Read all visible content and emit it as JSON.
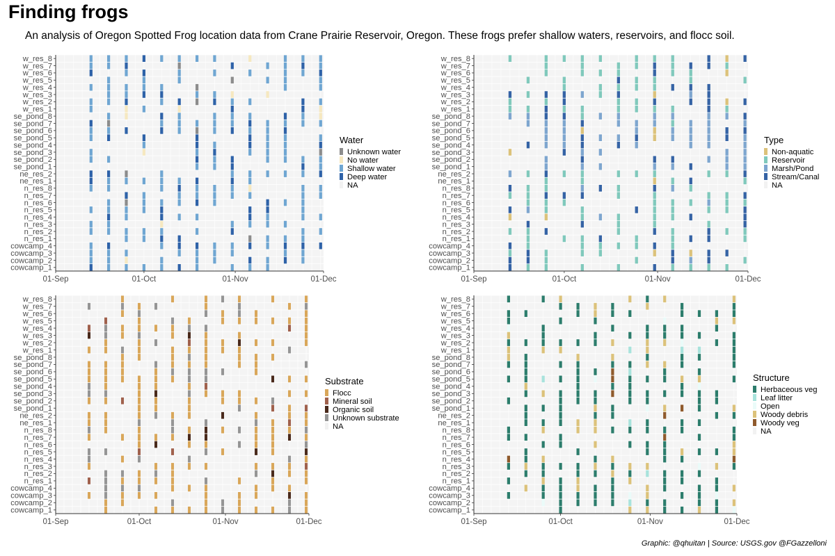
{
  "title": "Finding frogs",
  "subtitle": "An analysis of Oregon Spotted Frog location data from Crane Prairie Reservoir, Oregon. These frogs prefer shallow waters, reservoirs, and flocc soil.",
  "caption": "Graphic: @qhuitan | Source: USGS.gov @FGazzelloni",
  "colors": {
    "panel_bg": "#f4f4f4",
    "gridline": "#ffffff",
    "axis": "#333333",
    "tick_label": "#4d4d4d"
  },
  "chart_data": [
    {
      "type": "heatmap",
      "legend_title": "Water",
      "xlabel": "",
      "ylabel": "",
      "xlim": [
        "2018-09-01",
        "2018-12-01"
      ],
      "x_ticks": [
        "01-Sep",
        "01-Oct",
        "01-Nov",
        "01-Dec"
      ],
      "sites": [
        "w_res_8",
        "w_res_7",
        "w_res_6",
        "w_res_5",
        "w_res_4",
        "w_res_3",
        "w_res_2",
        "w_res_1",
        "se_pond_8",
        "se_pond_7",
        "se_pond_6",
        "se_pond_5",
        "se_pond_4",
        "se_pond_3",
        "se_pond_2",
        "se_pond_1",
        "ne_res_2",
        "ne_res_1",
        "n_res_8",
        "n_res_7",
        "n_res_6",
        "n_res_5",
        "n_res_4",
        "n_res_3",
        "n_res_2",
        "n_res_1",
        "cowcamp_4",
        "cowcamp_3",
        "cowcamp_2",
        "cowcamp_1"
      ],
      "categories": [
        {
          "name": "Unknown water",
          "color": "#8c8c8c"
        },
        {
          "name": "No water",
          "color": "#f6e8c0"
        },
        {
          "name": "Shallow water",
          "color": "#6fa6d2"
        },
        {
          "name": "Deep water",
          "color": "#2e62a8"
        },
        {
          "name": "NA",
          "color": "#f2f2f2"
        }
      ],
      "survey_dates": [
        "2018-09-13",
        "2018-09-19",
        "2018-09-25",
        "2018-10-01",
        "2018-10-07",
        "2018-10-13",
        "2018-10-19",
        "2018-10-25",
        "2018-10-31",
        "2018-11-06",
        "2018-11-12",
        "2018-11-18",
        "2018-11-24",
        "2018-11-30"
      ]
    },
    {
      "type": "heatmap",
      "legend_title": "Type",
      "xlabel": "",
      "ylabel": "",
      "xlim": [
        "2018-09-01",
        "2018-12-01"
      ],
      "x_ticks": [
        "01-Sep",
        "01-Oct",
        "01-Nov",
        "01-Dec"
      ],
      "sites": [
        "w_res_8",
        "w_res_7",
        "w_res_6",
        "w_res_5",
        "w_res_4",
        "w_res_3",
        "w_res_2",
        "w_res_1",
        "se_pond_8",
        "se_pond_7",
        "se_pond_6",
        "se_pond_5",
        "se_pond_4",
        "se_pond_3",
        "se_pond_2",
        "se_pond_1",
        "ne_res_2",
        "ne_res_1",
        "n_res_8",
        "n_res_7",
        "n_res_6",
        "n_res_5",
        "n_res_4",
        "n_res_3",
        "n_res_2",
        "n_res_1",
        "cowcamp_4",
        "cowcamp_3",
        "cowcamp_2",
        "cowcamp_1"
      ],
      "categories": [
        {
          "name": "Non-aquatic",
          "color": "#dcc27a"
        },
        {
          "name": "Reservoir",
          "color": "#80c9bc"
        },
        {
          "name": "Marsh/Pond",
          "color": "#7ea6cf"
        },
        {
          "name": "Stream/Canal",
          "color": "#3563a5"
        },
        {
          "name": "NA",
          "color": "#f2f2f2"
        }
      ],
      "survey_dates": [
        "2018-09-13",
        "2018-09-19",
        "2018-09-25",
        "2018-10-01",
        "2018-10-07",
        "2018-10-13",
        "2018-10-19",
        "2018-10-25",
        "2018-10-31",
        "2018-11-06",
        "2018-11-12",
        "2018-11-18",
        "2018-11-24",
        "2018-11-30"
      ]
    },
    {
      "type": "heatmap",
      "legend_title": "Substrate",
      "xlabel": "",
      "ylabel": "",
      "xlim": [
        "2018-09-01",
        "2018-12-01"
      ],
      "x_ticks": [
        "01-Sep",
        "01-Oct",
        "01-Nov",
        "01-Dec"
      ],
      "sites": [
        "w_res_8",
        "w_res_7",
        "w_res_6",
        "w_res_5",
        "w_res_4",
        "w_res_3",
        "w_res_2",
        "w_res_1",
        "se_pond_8",
        "se_pond_7",
        "se_pond_6",
        "se_pond_5",
        "se_pond_4",
        "se_pond_3",
        "se_pond_2",
        "se_pond_1",
        "ne_res_2",
        "ne_res_1",
        "n_res_8",
        "n_res_7",
        "n_res_6",
        "n_res_5",
        "n_res_4",
        "n_res_3",
        "n_res_2",
        "n_res_1",
        "cowcamp_4",
        "cowcamp_3",
        "cowcamp_2",
        "cowcamp_1"
      ],
      "categories": [
        {
          "name": "Flocc",
          "color": "#d9a75a"
        },
        {
          "name": "Mineral soil",
          "color": "#a0614d"
        },
        {
          "name": "Organic soil",
          "color": "#4a2a1c"
        },
        {
          "name": "Unknown substrate",
          "color": "#959595"
        },
        {
          "name": "NA",
          "color": "#f2f2f2"
        }
      ],
      "survey_dates": [
        "2018-09-13",
        "2018-09-19",
        "2018-09-25",
        "2018-10-01",
        "2018-10-07",
        "2018-10-13",
        "2018-10-19",
        "2018-10-25",
        "2018-10-31",
        "2018-11-06",
        "2018-11-12",
        "2018-11-18",
        "2018-11-24",
        "2018-11-30"
      ]
    },
    {
      "type": "heatmap",
      "legend_title": "Structure",
      "xlabel": "",
      "ylabel": "",
      "xlim": [
        "2018-09-01",
        "2018-12-01"
      ],
      "x_ticks": [
        "01-Sep",
        "01-Oct",
        "01-Nov",
        "01-Dec"
      ],
      "sites": [
        "w_res_8",
        "w_res_7",
        "w_res_6",
        "w_res_5",
        "w_res_4",
        "w_res_3",
        "w_res_2",
        "w_res_1",
        "se_pond_8",
        "se_pond_7",
        "se_pond_6",
        "se_pond_5",
        "se_pond_4",
        "se_pond_3",
        "se_pond_2",
        "se_pond_1",
        "ne_res_2",
        "ne_res_1",
        "n_res_8",
        "n_res_7",
        "n_res_6",
        "n_res_5",
        "n_res_4",
        "n_res_3",
        "n_res_2",
        "n_res_1",
        "cowcamp_4",
        "cowcamp_3",
        "cowcamp_2",
        "cowcamp_1"
      ],
      "categories": [
        {
          "name": "Herbaceous veg",
          "color": "#2c7d6c"
        },
        {
          "name": "Leaf litter",
          "color": "#a8e3dc"
        },
        {
          "name": "Open",
          "color": "#eafbf9"
        },
        {
          "name": "Woody debris",
          "color": "#dcc27a"
        },
        {
          "name": "Woody veg",
          "color": "#8f5a2c"
        },
        {
          "name": "NA",
          "color": "#f2f2f2"
        }
      ],
      "survey_dates": [
        "2018-09-13",
        "2018-09-19",
        "2018-09-25",
        "2018-10-01",
        "2018-10-07",
        "2018-10-13",
        "2018-10-19",
        "2018-10-25",
        "2018-10-31",
        "2018-11-06",
        "2018-11-12",
        "2018-11-18",
        "2018-11-24",
        "2018-11-30"
      ]
    }
  ]
}
